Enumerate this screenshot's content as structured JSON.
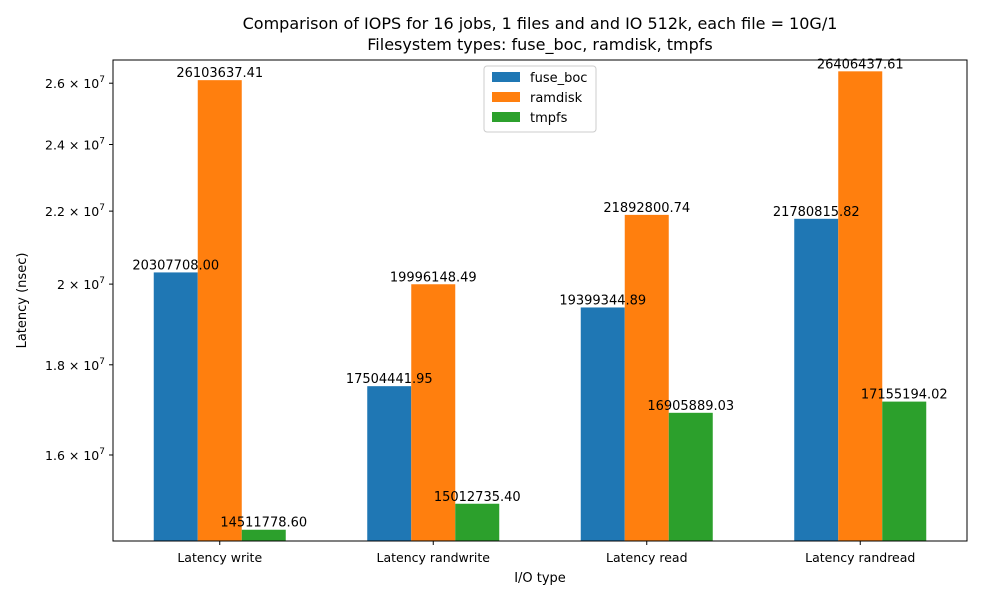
{
  "chart_data": {
    "type": "bar",
    "title_line1": "Comparison of IOPS for 16 jobs, 1 files and  and IO 512k, each file = 10G/1",
    "title_line2": "Filesystem types: fuse_boc, ramdisk, tmpfs",
    "xlabel": "I/O type",
    "ylabel": "Latency (nsec)",
    "yscale": "log",
    "ylim": [
      14300000,
      26800000
    ],
    "yticks": [
      {
        "value": 16000000,
        "mantissa": "1.6",
        "label_prefix": "1.6 × 10",
        "exp": "7"
      },
      {
        "value": 18000000,
        "mantissa": "1.8",
        "label_prefix": "1.8 × 10",
        "exp": "7"
      },
      {
        "value": 20000000,
        "mantissa": "2",
        "label_prefix": "2 × 10",
        "exp": "7"
      },
      {
        "value": 22000000,
        "mantissa": "2.2",
        "label_prefix": "2.2 × 10",
        "exp": "7"
      },
      {
        "value": 24000000,
        "mantissa": "2.4",
        "label_prefix": "2.4 × 10",
        "exp": "7"
      },
      {
        "value": 26000000,
        "mantissa": "2.6",
        "label_prefix": "2.6 × 10",
        "exp": "7"
      }
    ],
    "categories": [
      "Latency write",
      "Latency randwrite",
      "Latency read",
      "Latency randread"
    ],
    "series": [
      {
        "name": "fuse_boc",
        "color": "#1f77b4",
        "values": [
          20307708.0,
          17504441.95,
          19399344.89,
          21780815.82
        ],
        "labels": [
          "20307708.00",
          "17504441.95",
          "19399344.89",
          "21780815.82"
        ]
      },
      {
        "name": "ramdisk",
        "color": "#ff7f0e",
        "values": [
          26103637.41,
          19996148.49,
          21892800.74,
          26406437.61
        ],
        "labels": [
          "26103637.41",
          "19996148.49",
          "21892800.74",
          "26406437.61"
        ]
      },
      {
        "name": "tmpfs",
        "color": "#2ca02c",
        "values": [
          14511778.6,
          15012735.4,
          16905889.03,
          17155194.02
        ],
        "labels": [
          "14511778.60",
          "15012735.40",
          "16905889.03",
          "17155194.02"
        ]
      }
    ],
    "legend_position": "top-center",
    "grid": false
  }
}
